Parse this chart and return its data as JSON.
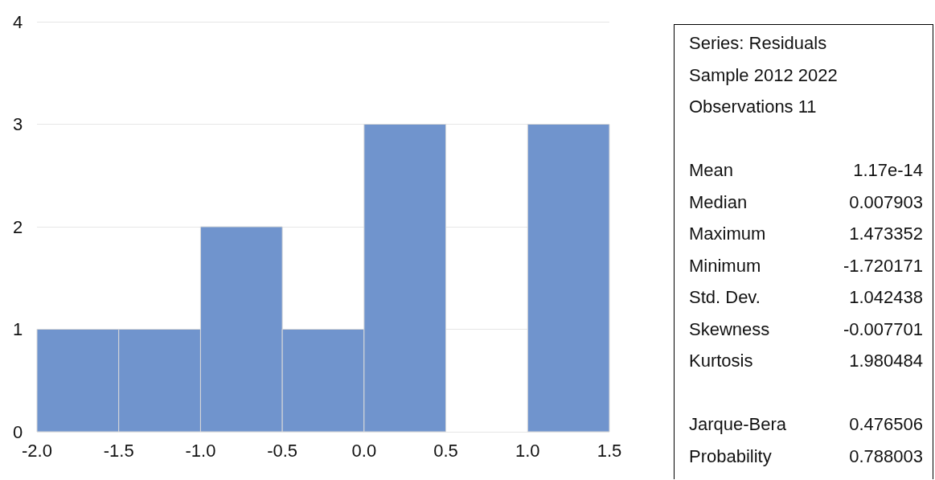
{
  "chart_data": {
    "type": "histogram",
    "bins": [
      -2.0,
      -1.5,
      -1.0,
      -0.5,
      0.0,
      0.5,
      1.0,
      1.5
    ],
    "values": [
      1,
      1,
      2,
      1,
      3,
      0,
      3
    ],
    "color": "#7094cd",
    "xlim": [
      -2.0,
      1.5
    ],
    "xticks": [
      {
        "value": -2,
        "label": "-2.0"
      },
      {
        "value": -1.5,
        "label": "-1.5"
      },
      {
        "value": -1,
        "label": "-1.0"
      },
      {
        "value": -0.5,
        "label": "-0.5"
      },
      {
        "value": 0,
        "label": "0.0"
      },
      {
        "value": 0.5,
        "label": "0.5"
      },
      {
        "value": 1,
        "label": "1.0"
      },
      {
        "value": 1.5,
        "label": "1.5"
      }
    ],
    "ylim": [
      0,
      4
    ],
    "yticks": [
      0,
      1,
      2,
      3,
      4
    ],
    "grid": "y",
    "annotations": [
      "Series: Residuals",
      "Sample 2012 2022",
      "Observations 11",
      "Mean",
      "1.17e-14",
      "Median",
      "0.007903",
      "Maximum",
      "1.473352",
      "Minimum",
      "-1.720171",
      "Std. Dev.",
      "1.042438",
      "Skewness",
      "-0.007701",
      "Kurtosis",
      "1.980484",
      "Jarque-Bera",
      "0.476506",
      "Probability",
      "0.788003"
    ]
  }
}
